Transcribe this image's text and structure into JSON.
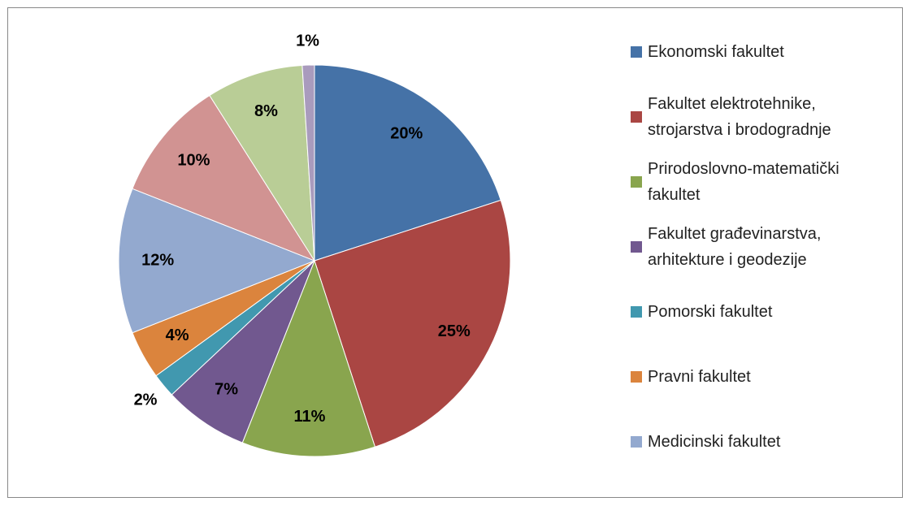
{
  "chart_data": {
    "type": "pie",
    "categories": [
      "Ekonomski fakultet",
      "Fakultet elektrotehnike, strojarstva i brodogradnje",
      "Prirodoslovno-matematički fakultet",
      "Fakultet građevinarstva, arhitekture i geodezije",
      "Pomorski fakultet",
      "Pravni fakultet",
      "Medicinski fakultet",
      null,
      null,
      null
    ],
    "values": [
      20,
      25,
      11,
      7,
      2,
      4,
      12,
      10,
      8,
      1
    ],
    "value_labels": [
      "20%",
      "25%",
      "11%",
      "7%",
      "2%",
      "4%",
      "12%",
      "10%",
      "8%",
      "1%"
    ],
    "colors": [
      "#4572a7",
      "#aa4643",
      "#89a54e",
      "#71588f",
      "#4198af",
      "#db843d",
      "#93a9cf",
      "#d19392",
      "#b9cd96",
      "#a99bbd"
    ],
    "legend": "right"
  }
}
